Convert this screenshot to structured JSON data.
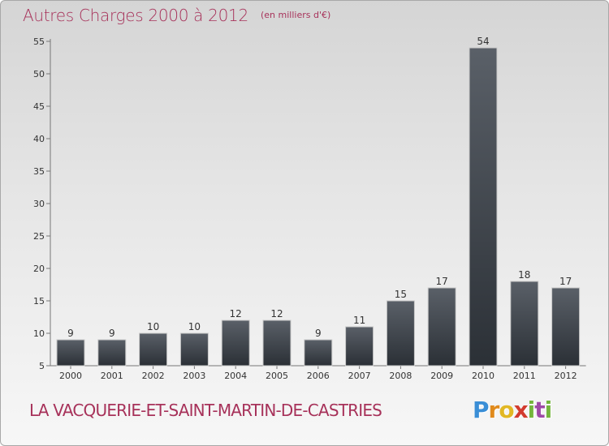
{
  "header": {
    "title": "Autres Charges 2000 à 2012",
    "subtitle": "(en milliers d'€)"
  },
  "footer": {
    "commune": "LA VACQUERIE-ET-SAINT-MARTIN-DE-CASTRIES",
    "logo": "Proxiti"
  },
  "colors": {
    "title": "#a7325a",
    "bar_top": "#5a6068",
    "bar_bottom": "#2b3036",
    "axis": "#777777"
  },
  "chart_data": {
    "type": "bar",
    "title": "Autres Charges 2000 à 2012",
    "subtitle": "(en milliers d'€)",
    "categories": [
      "2000",
      "2001",
      "2002",
      "2003",
      "2004",
      "2005",
      "2006",
      "2007",
      "2008",
      "2009",
      "2010",
      "2011",
      "2012"
    ],
    "values": [
      9,
      9,
      10,
      10,
      12,
      12,
      9,
      11,
      15,
      17,
      54,
      18,
      17
    ],
    "data_labels": [
      "9",
      "9",
      "10",
      "10",
      "12",
      "12",
      "9",
      "11",
      "15",
      "17",
      "54",
      "18",
      "17"
    ],
    "ylim": [
      5,
      55
    ],
    "yticks": [
      5,
      10,
      15,
      20,
      25,
      30,
      35,
      40,
      45,
      50,
      55
    ],
    "grid": false,
    "legend": "none"
  }
}
